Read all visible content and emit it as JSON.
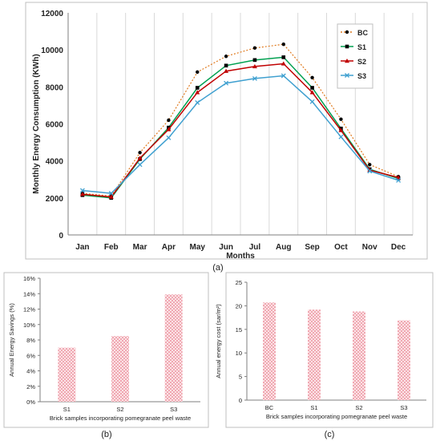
{
  "panel_labels": {
    "a": "(a)",
    "b": "(b)",
    "c": "(c)"
  },
  "chart_data": [
    {
      "type": "line",
      "title": "",
      "xlabel": "Months",
      "ylabel": "Monthly Energy Consumption (KWh)",
      "categories": [
        "Jan",
        "Feb",
        "Mar",
        "Apr",
        "May",
        "Jun",
        "Jul",
        "Aug",
        "Sep",
        "Oct",
        "Nov",
        "Dec"
      ],
      "ylim": [
        0,
        12000
      ],
      "yticks": [
        0,
        2000,
        4000,
        6000,
        8000,
        10000,
        12000
      ],
      "grid": "vertical",
      "legend": "top-right",
      "series": [
        {
          "name": "BC",
          "color": "#e07b20",
          "marker": "circle",
          "dashed": true,
          "values": [
            2250,
            2100,
            4450,
            6200,
            8800,
            9650,
            10100,
            10300,
            8500,
            6250,
            3800,
            3150
          ]
        },
        {
          "name": "S1",
          "color": "#00a050",
          "marker": "square",
          "dashed": false,
          "values": [
            2150,
            2000,
            4100,
            5800,
            7950,
            9150,
            9450,
            9600,
            7950,
            5750,
            3550,
            3050
          ]
        },
        {
          "name": "S2",
          "color": "#c00000",
          "marker": "triangle",
          "dashed": false,
          "values": [
            2200,
            2050,
            4150,
            5700,
            7700,
            8850,
            9100,
            9250,
            7700,
            5650,
            3500,
            3100
          ]
        },
        {
          "name": "S3",
          "color": "#3fa0d0",
          "marker": "x",
          "dashed": false,
          "values": [
            2400,
            2250,
            3800,
            5250,
            7150,
            8200,
            8450,
            8600,
            7200,
            5300,
            3450,
            2950
          ]
        }
      ]
    },
    {
      "type": "bar",
      "title": "",
      "xlabel": "Brick samples incorporating pomegranate peel waste",
      "ylabel": "Annual Energy Savings (%)",
      "categories": [
        "S1",
        "S2",
        "S3"
      ],
      "values": [
        7.0,
        8.5,
        13.9
      ],
      "ylim": [
        0,
        16
      ],
      "yticks": [
        "0%",
        "2%",
        "4%",
        "6%",
        "8%",
        "10%",
        "12%",
        "14%",
        "16%"
      ],
      "fill": "pink-checkered"
    },
    {
      "type": "bar",
      "title": "",
      "xlabel": "Brick samples incorporating pomegranate peel waste",
      "ylabel": "Annual energy cost (sar/m²)",
      "categories": [
        "BC",
        "S1",
        "S2",
        "S3"
      ],
      "values": [
        20.7,
        19.2,
        18.8,
        16.9
      ],
      "ylim": [
        0,
        25
      ],
      "yticks": [
        "0",
        "5",
        "10",
        "15",
        "20",
        "25"
      ],
      "fill": "pink-checkered"
    }
  ]
}
